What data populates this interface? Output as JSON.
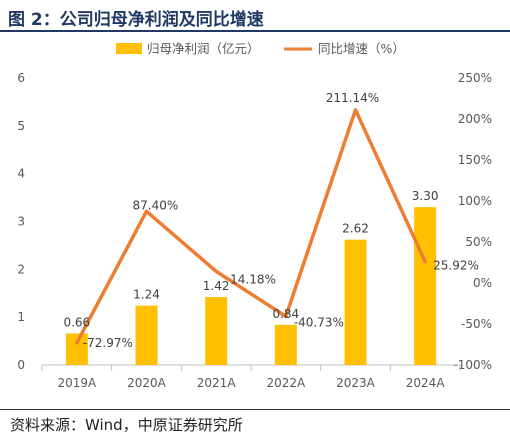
{
  "figure": {
    "title": "图 2：公司归母净利润及同比增速",
    "source": "资料来源：Wind，中原证券研究所"
  },
  "chart_data": {
    "type": "bar",
    "categories": [
      "2019A",
      "2020A",
      "2021A",
      "2022A",
      "2023A",
      "2024A"
    ],
    "series": [
      {
        "name": "归母净利润（亿元）",
        "type": "bar",
        "axis": "left",
        "color": "#FFC000",
        "values": [
          0.66,
          1.24,
          1.42,
          0.84,
          2.62,
          3.3
        ],
        "labels": [
          "0.66",
          "1.24",
          "1.42",
          "0.84",
          "2.62",
          "3.30"
        ]
      },
      {
        "name": "同比增速（%）",
        "type": "line",
        "axis": "right",
        "color": "#ED7D31",
        "values": [
          -72.97,
          87.4,
          14.18,
          -40.73,
          211.14,
          25.92
        ],
        "labels": [
          "-72.97%",
          "87.40%",
          "14.18%",
          "-40.73%",
          "211.14%",
          "25.92%"
        ]
      }
    ],
    "y_left": {
      "min": 0,
      "max": 6,
      "ticks": [
        "0",
        "1",
        "2",
        "3",
        "4",
        "5",
        "6"
      ]
    },
    "y_right": {
      "min": -100,
      "max": 250,
      "ticks": [
        "-100%",
        "-50%",
        "0%",
        "50%",
        "100%",
        "150%",
        "200%",
        "250%"
      ]
    },
    "legend_position": "top",
    "grid": false
  }
}
